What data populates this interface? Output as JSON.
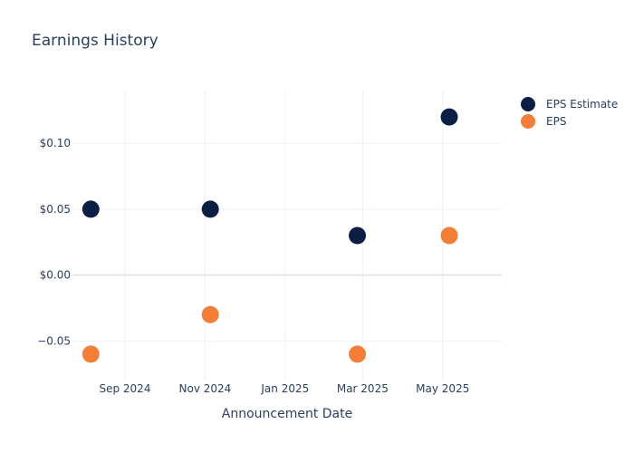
{
  "chart_data": {
    "type": "scatter",
    "title": "Earnings History",
    "xlabel": "Announcement Date",
    "ylabel": "",
    "x_tick_labels": [
      "Sep 2024",
      "Nov 2024",
      "Jan 2025",
      "Mar 2025",
      "May 2025"
    ],
    "x_ticks": [
      "2024-09-01",
      "2024-11-01",
      "2025-01-01",
      "2025-03-01",
      "2025-05-01"
    ],
    "xlim": [
      "2024-07-23",
      "2025-06-15"
    ],
    "y_tick_labels": [
      "−0.05",
      "$0.00",
      "$0.05",
      "$0.10"
    ],
    "y_ticks": [
      -0.05,
      0.0,
      0.05,
      0.1
    ],
    "ylim": [
      -0.08,
      0.14
    ],
    "grid": true,
    "legend_position": "top-right",
    "series": [
      {
        "name": "EPS Estimate",
        "color": "#0b1f44",
        "points": [
          {
            "x": "2024-08-06",
            "y": 0.05
          },
          {
            "x": "2024-11-05",
            "y": 0.05
          },
          {
            "x": "2025-02-25",
            "y": 0.03
          },
          {
            "x": "2025-05-06",
            "y": 0.12
          }
        ]
      },
      {
        "name": "EPS",
        "color": "#f47e36",
        "points": [
          {
            "x": "2024-08-06",
            "y": -0.06
          },
          {
            "x": "2024-11-05",
            "y": -0.03
          },
          {
            "x": "2025-02-25",
            "y": -0.06
          },
          {
            "x": "2025-05-06",
            "y": 0.03
          }
        ]
      }
    ]
  }
}
